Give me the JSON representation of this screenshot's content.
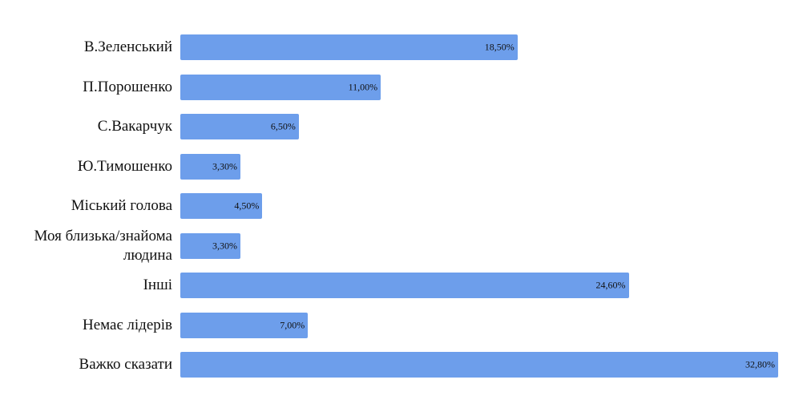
{
  "chart_data": {
    "type": "barh",
    "categories": [
      "В.Зеленський",
      "П.Порошенко",
      "С.Вакарчук",
      "Ю.Тимошенко",
      "Міський голова",
      "Моя близька/знайома людина",
      "Інші",
      "Немає лідерів",
      "Важко сказати"
    ],
    "values": [
      18.5,
      11.0,
      6.5,
      3.3,
      4.5,
      3.3,
      24.6,
      7.0,
      32.8
    ],
    "value_labels": [
      "18,50%",
      "11,00%",
      "6,50%",
      "3,30%",
      "4,50%",
      "3,30%",
      "24,60%",
      "7,00%",
      "32,80%"
    ],
    "color": "#6d9eeb"
  }
}
